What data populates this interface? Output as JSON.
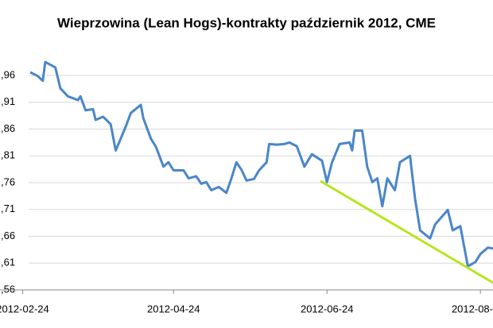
{
  "chart_data": {
    "type": "line",
    "title": "Wieprzowina (Lean Hogs)-kontrakty październik 2012, CME",
    "x": [
      "2012-02-27",
      "2012-03-01",
      "2012-03-03",
      "2012-03-04",
      "2012-03-08",
      "2012-03-10",
      "2012-03-13",
      "2012-03-17",
      "2012-03-18",
      "2012-03-20",
      "2012-03-23",
      "2012-03-24",
      "2012-03-27",
      "2012-03-30",
      "2012-04-01",
      "2012-04-03",
      "2012-04-05",
      "2012-04-07",
      "2012-04-11",
      "2012-04-12",
      "2012-04-15",
      "2012-04-17",
      "2012-04-20",
      "2012-04-22",
      "2012-04-24",
      "2012-04-28",
      "2012-04-30",
      "2012-05-03",
      "2012-05-05",
      "2012-05-07",
      "2012-05-09",
      "2012-05-12",
      "2012-05-15",
      "2012-05-17",
      "2012-05-19",
      "2012-05-21",
      "2012-05-23",
      "2012-05-26",
      "2012-05-28",
      "2012-05-31",
      "2012-06-01",
      "2012-06-04",
      "2012-06-07",
      "2012-06-09",
      "2012-06-12",
      "2012-06-15",
      "2012-06-18",
      "2012-06-22",
      "2012-06-24",
      "2012-06-26",
      "2012-06-29",
      "2012-07-03",
      "2012-07-04",
      "2012-07-05",
      "2012-07-08",
      "2012-07-10",
      "2012-07-12",
      "2012-07-14",
      "2012-07-16",
      "2012-07-18",
      "2012-07-21",
      "2012-07-23",
      "2012-07-27",
      "2012-07-29",
      "2012-07-31",
      "2012-08-04",
      "2012-08-06",
      "2012-08-11",
      "2012-08-13",
      "2012-08-16",
      "2012-08-19",
      "2012-08-22",
      "2012-08-24",
      "2012-08-27",
      "2012-08-29"
    ],
    "series": [
      {
        "color": "#4a86c8",
        "values": [
          0.966,
          0.959,
          0.95,
          0.985,
          0.975,
          0.936,
          0.921,
          0.914,
          0.921,
          0.895,
          0.897,
          0.877,
          0.883,
          0.869,
          0.82,
          0.842,
          0.865,
          0.89,
          0.905,
          0.88,
          0.842,
          0.827,
          0.79,
          0.798,
          0.783,
          0.783,
          0.768,
          0.772,
          0.758,
          0.761,
          0.746,
          0.752,
          0.741,
          0.768,
          0.798,
          0.784,
          0.764,
          0.767,
          0.783,
          0.798,
          0.832,
          0.831,
          0.832,
          0.835,
          0.828,
          0.79,
          0.813,
          0.801,
          0.761,
          0.798,
          0.832,
          0.835,
          0.82,
          0.857,
          0.857,
          0.79,
          0.761,
          0.768,
          0.716,
          0.768,
          0.746,
          0.798,
          0.81,
          0.731,
          0.671,
          0.656,
          0.682,
          0.709,
          0.671,
          0.679,
          0.604,
          0.612,
          0.627,
          0.639,
          0.637
        ]
      }
    ],
    "xlim": [
      "2012-02-15",
      "2012-08-29"
    ],
    "xticks": [
      "2012-02-24",
      "2012-04-24",
      "2012-06-24",
      {
        "value": "2012-08-24",
        "label": "2012-08-"
      }
    ],
    "ylim": [
      0.56,
      1.0
    ],
    "yticks": [
      {
        "value": 0.56,
        "label": ",56"
      },
      {
        "value": 0.61,
        "label": ",61"
      },
      {
        "value": 0.66,
        "label": ",66"
      },
      {
        "value": 0.71,
        "label": ",71"
      },
      {
        "value": 0.76,
        "label": ",76"
      },
      {
        "value": 0.81,
        "label": ",81"
      },
      {
        "value": 0.86,
        "label": ",86"
      },
      {
        "value": 0.91,
        "label": ",91"
      },
      {
        "value": 0.96,
        "label": ",96"
      }
    ],
    "grid": true
  }
}
